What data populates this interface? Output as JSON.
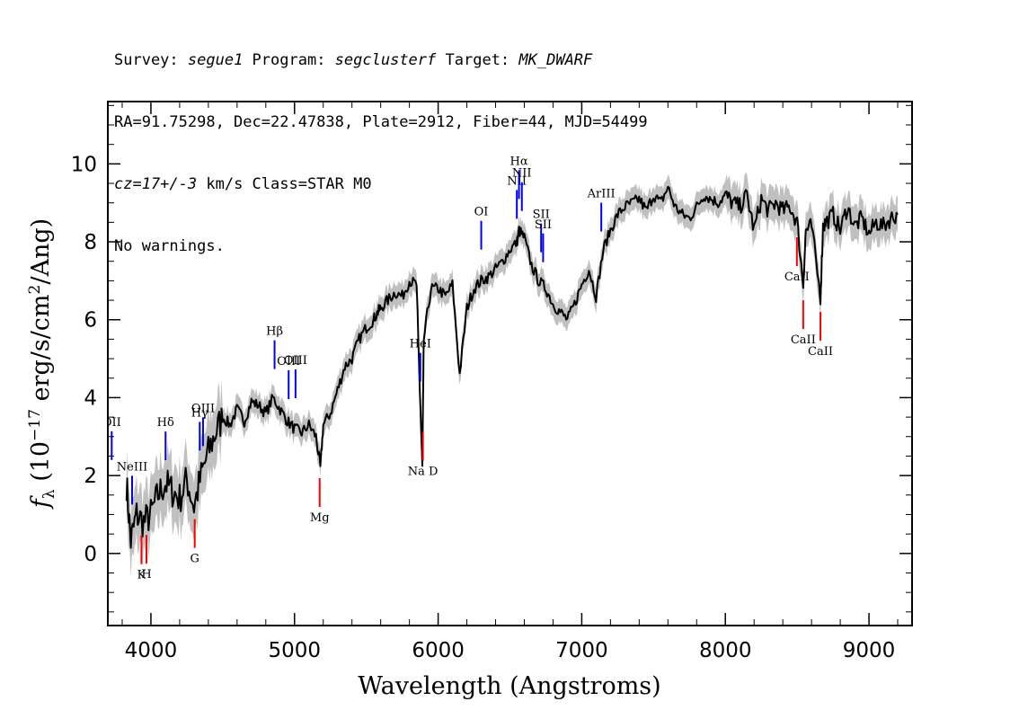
{
  "header": {
    "line1": {
      "survey_label": "Survey: ",
      "survey": "segue1",
      "program_label": " Program: ",
      "program": "segclusterf",
      "target_label": " Target: ",
      "target": "MK_DWARF"
    },
    "line2": "RA=91.75298, Dec=22.47838, Plate=2912, Fiber=44, MJD=54499",
    "line3": {
      "cz": "cz=17+/-3",
      "rest": " km/s Class=STAR M0"
    },
    "line4": "No warnings."
  },
  "colors": {
    "flux": "#000000",
    "error_band": "#c0c0c0",
    "emission": "#0000ff",
    "absorption": "#ff0000"
  },
  "chart_data": {
    "type": "line",
    "xlabel": "Wavelength (Angstroms)",
    "ylabel": "f_λ (10^-17 erg/s/cm^2/Ang)",
    "ylabel_parts": {
      "f": "f",
      "sub": "λ",
      "a": " (10",
      "exp": "−17",
      "b": " erg/s/cm",
      "exp2": "2",
      "c": "/Ang)"
    },
    "xlim": [
      3700,
      9300
    ],
    "ylim": [
      -1.85,
      11.6
    ],
    "xticks": [
      4000,
      5000,
      6000,
      7000,
      8000,
      9000
    ],
    "yticks": [
      0,
      2,
      4,
      6,
      8,
      10
    ],
    "grid": false,
    "series": [
      {
        "x": [
          3830,
          3860,
          3900,
          3950,
          4000,
          4050,
          4100,
          4150,
          4200,
          4250,
          4300,
          4350,
          4400,
          4450,
          4500,
          4550,
          4600,
          4650,
          4700,
          4750,
          4800,
          4850,
          4900,
          4950,
          5000,
          5050,
          5100,
          5150,
          5180,
          5200,
          5250,
          5300,
          5350,
          5400,
          5450,
          5500,
          5550,
          5580,
          5600,
          5650,
          5700,
          5750,
          5800,
          5850,
          5870,
          5890,
          5900,
          5950,
          6000,
          6050,
          6100,
          6150,
          6200,
          6250,
          6300,
          6350,
          6400,
          6450,
          6500,
          6550,
          6563,
          6600,
          6650,
          6700,
          6750,
          6800,
          6850,
          6900,
          6950,
          7000,
          7050,
          7100,
          7150,
          7200,
          7250,
          7300,
          7350,
          7400,
          7450,
          7500,
          7550,
          7600,
          7650,
          7700,
          7750,
          7800,
          7850,
          7900,
          7950,
          8000,
          8050,
          8100,
          8150,
          8200,
          8250,
          8300,
          8350,
          8400,
          8450,
          8500,
          8542,
          8560,
          8600,
          8662,
          8680,
          8700,
          8750,
          8800,
          8850,
          8900,
          8950,
          9000,
          9050,
          9100,
          9150,
          9200
        ],
        "y": [
          1.8,
          0.3,
          1.0,
          0.8,
          1.0,
          1.5,
          1.8,
          1.6,
          1.4,
          1.9,
          1.2,
          2.0,
          2.6,
          3.1,
          3.5,
          3.3,
          3.7,
          3.4,
          3.9,
          3.8,
          3.6,
          4.0,
          3.7,
          3.4,
          3.2,
          3.1,
          3.3,
          3.0,
          2.2,
          3.3,
          3.6,
          4.2,
          4.8,
          5.0,
          5.5,
          5.8,
          6.0,
          6.2,
          6.3,
          6.5,
          6.7,
          6.6,
          7.0,
          6.9,
          4.5,
          2.2,
          5.5,
          6.8,
          6.8,
          6.6,
          6.9,
          4.6,
          6.3,
          6.8,
          7.0,
          7.1,
          7.3,
          7.5,
          7.8,
          8.0,
          8.3,
          8.1,
          7.4,
          7.0,
          6.8,
          6.4,
          6.2,
          6.0,
          6.4,
          6.9,
          7.3,
          6.6,
          7.8,
          8.3,
          8.7,
          8.9,
          9.0,
          9.1,
          8.8,
          9.2,
          9.0,
          9.4,
          8.9,
          8.7,
          8.6,
          8.9,
          9.2,
          9.1,
          9.0,
          9.2,
          9.0,
          8.9,
          9.2,
          8.3,
          9.1,
          8.8,
          9.0,
          8.8,
          8.9,
          8.5,
          6.9,
          8.3,
          8.4,
          6.6,
          8.4,
          8.5,
          8.7,
          8.3,
          8.9,
          8.4,
          8.6,
          8.2,
          8.5,
          8.4,
          8.6,
          8.7
        ]
      }
    ],
    "emission_lines": [
      {
        "label": "OII",
        "x": 3727
      },
      {
        "label": "NeIII",
        "x": 3869
      },
      {
        "label": "Hδ",
        "x": 4102
      },
      {
        "label": "Hγ",
        "x": 4340
      },
      {
        "label": "OIII",
        "x": 4363
      },
      {
        "label": "Hβ",
        "x": 4861
      },
      {
        "label": "OIII",
        "x": 4959
      },
      {
        "label": "OIII",
        "x": 5007
      },
      {
        "label": "HeI",
        "x": 5876
      },
      {
        "label": "OI",
        "x": 6300
      },
      {
        "label": "NII",
        "x": 6548
      },
      {
        "label": "Hα",
        "x": 6563
      },
      {
        "label": "NII",
        "x": 6583
      },
      {
        "label": "SII",
        "x": 6717
      },
      {
        "label": "SII",
        "x": 6731
      },
      {
        "label": "ArIII",
        "x": 7136
      }
    ],
    "absorption_lines": [
      {
        "label": "K",
        "x": 3934
      },
      {
        "label": "H",
        "x": 3969
      },
      {
        "label": "G",
        "x": 4305
      },
      {
        "label": "Mg",
        "x": 5175
      },
      {
        "label": "Na D",
        "x": 5894
      },
      {
        "label": "CaII",
        "x": 8498
      },
      {
        "label": "CaII",
        "x": 8542
      },
      {
        "label": "CaII",
        "x": 8662
      }
    ]
  }
}
